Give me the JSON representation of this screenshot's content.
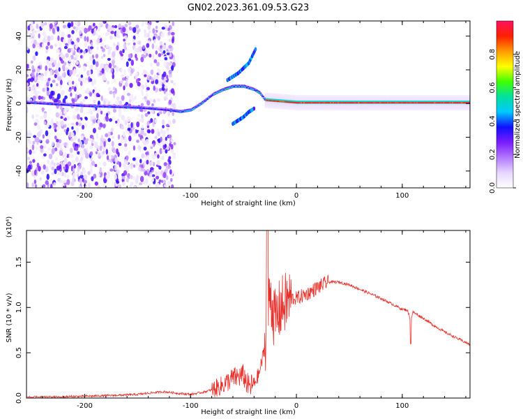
{
  "figure": {
    "title": "GN02.2023.361.09.53.G23"
  },
  "chart_data": [
    {
      "id": "spectrogram",
      "type": "heatmap",
      "title": "GN02.2023.361.09.53.G23",
      "xlabel": "Height of straight line (km)",
      "ylabel": "Frequency (Hz)",
      "xlim": [
        -255,
        164
      ],
      "ylim": [
        -50,
        49
      ],
      "xticks": [
        -200,
        -100,
        0,
        100
      ],
      "xtick_labels": [
        "-200",
        "-100",
        "0",
        "100"
      ],
      "yticks": [
        -40,
        -20,
        0,
        20,
        40
      ],
      "ytick_labels": [
        "-40",
        "-20",
        "0",
        "20",
        "40"
      ],
      "grid": false,
      "colorbar": {
        "label": "Normalized spectral amplitude",
        "range": [
          0,
          1
        ],
        "ticks": [
          0.0,
          0.2,
          0.4,
          0.6,
          0.8
        ],
        "tick_labels": [
          "0.0",
          "0.2",
          "0.4",
          "0.6",
          "0.8"
        ],
        "colormap": [
          "#ffffff",
          "#e6d6ff",
          "#b278ff",
          "#7a1cff",
          "#1010ff",
          "#00c8ff",
          "#00e0a0",
          "#40ff00",
          "#ffff00",
          "#ff9900",
          "#ff2000",
          "#ff1060"
        ]
      },
      "features": [
        {
          "name": "noise region",
          "x_range": [
            -255,
            -115
          ],
          "y_range": [
            -50,
            49
          ],
          "amplitude": 0.12
        },
        {
          "name": "main signal",
          "points": [
            [
              -255,
              0.5
            ],
            [
              -200,
              -1.5
            ],
            [
              -150,
              -2.5
            ],
            [
              -120,
              -4
            ],
            [
              -110,
              -5
            ],
            [
              -100,
              -4
            ],
            [
              -90,
              0
            ],
            [
              -80,
              5
            ],
            [
              -70,
              8
            ],
            [
              -60,
              10
            ],
            [
              -50,
              10
            ],
            [
              -40,
              8
            ],
            [
              -35,
              6
            ],
            [
              -30,
              2
            ],
            [
              0,
              0.5
            ],
            [
              164,
              0.5
            ]
          ],
          "amplitude_range": [
            0.2,
            1.0
          ]
        },
        {
          "name": "upper arc",
          "points": [
            [
              -65,
              14
            ],
            [
              -55,
              18
            ],
            [
              -45,
              24
            ],
            [
              -38,
              33
            ]
          ],
          "amplitude": 0.3
        },
        {
          "name": "lower arc",
          "points": [
            [
              -60,
              -12
            ],
            [
              -50,
              -8
            ],
            [
              -45,
              -5
            ],
            [
              -40,
              -3
            ]
          ],
          "amplitude": 0.3
        }
      ]
    },
    {
      "id": "snr",
      "type": "line",
      "xlabel": "Height of straight line (km)",
      "ylabel": "SNR (10 * v/v)",
      "y_multiplier": "(x10⁴)",
      "xlim": [
        -255,
        164
      ],
      "ylim": [
        0,
        1.85
      ],
      "xticks": [
        -200,
        -100,
        0,
        100
      ],
      "xtick_labels": [
        "-200",
        "-100",
        "0",
        "100"
      ],
      "yticks": [
        0.0,
        0.5,
        1.0,
        1.5
      ],
      "ytick_labels": [
        "0.0",
        "0.5",
        "1.0",
        "1.5"
      ],
      "grid": false,
      "line_color": "#e8302a",
      "series": [
        {
          "x": [
            -255,
            -230,
            -200,
            -170,
            -150,
            -135,
            -125,
            -110,
            -100,
            -90,
            -80,
            -70,
            -60,
            -50,
            -45,
            -40,
            -35,
            -30,
            -27,
            -25,
            -22,
            -20,
            -15,
            -10,
            -5,
            0,
            10,
            20,
            30,
            40,
            50,
            60,
            70,
            80,
            90,
            100,
            105,
            108,
            110,
            120,
            130,
            140,
            150,
            164
          ],
          "y": [
            0.01,
            0.01,
            0.02,
            0.03,
            0.04,
            0.06,
            0.07,
            0.05,
            0.04,
            0.06,
            0.09,
            0.14,
            0.22,
            0.25,
            0.12,
            0.15,
            0.28,
            0.55,
            0.9,
            1.2,
            0.95,
            0.85,
            1.0,
            1.05,
            1.1,
            1.1,
            1.15,
            1.22,
            1.28,
            1.28,
            1.25,
            1.2,
            1.15,
            1.1,
            1.04,
            0.98,
            0.97,
            0.85,
            0.95,
            0.88,
            0.8,
            0.73,
            0.67,
            0.59
          ]
        }
      ],
      "annotations": [
        {
          "x": -27,
          "y": 1.85,
          "text": ""
        }
      ]
    }
  ]
}
